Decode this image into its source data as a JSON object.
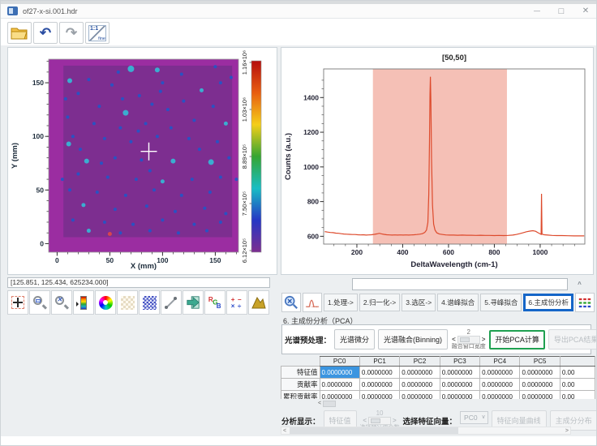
{
  "window": {
    "title": "of27-x-si.001.hdr"
  },
  "top_toolbar": {
    "icons": [
      {
        "name": "open-file-button",
        "type": "folder"
      },
      {
        "name": "undo-button",
        "type": "undo"
      },
      {
        "name": "redo-button",
        "type": "redo"
      },
      {
        "name": "zoom-1to1-button",
        "type": "one2one"
      }
    ]
  },
  "map_panel": {
    "status_readout": "[125.851, 125.434, 625234.000]",
    "toolbar_icons": [
      "crosshair",
      "zoom-window",
      "zoom-reset",
      "colormap",
      "color-wheel",
      "pattern-light",
      "pattern-blue",
      "measure",
      "import-arrow",
      "rgb-channels",
      "math-ops",
      "surface-3d"
    ]
  },
  "analysis": {
    "tabs": [
      "1.处理->",
      "2.归一化->",
      "3.选区->",
      "4.谱峰拟合",
      "5.寻峰拟合",
      "6.主成份分析"
    ],
    "active_tab_index": 5,
    "section_title": "6. 主成份分析（PCA）",
    "preprocess": {
      "label": "光谱预处理：",
      "derivative_btn": "光谱微分",
      "binning_btn": "光谱融合(Binning)",
      "bin_value": "2",
      "bin_caption": "融合窗口宽度",
      "start_btn": "开始PCA计算",
      "export_btn": "导出PCA结果"
    },
    "table": {
      "col_headers": [
        "PC0",
        "PC1",
        "PC2",
        "PC3",
        "PC4",
        "PC5",
        ""
      ],
      "rows": [
        {
          "label": "特征值",
          "values": [
            "0.0000000",
            "0.0000000",
            "0.0000000",
            "0.0000000",
            "0.0000000",
            "0.0000000",
            "0.00"
          ]
        },
        {
          "label": "贡献率",
          "values": [
            "0.0000000",
            "0.0000000",
            "0.0000000",
            "0.0000000",
            "0.0000000",
            "0.0000000",
            "0.00"
          ]
        },
        {
          "label": "累积贡献率",
          "values": [
            "0.0000000",
            "0.0000000",
            "0.0000000",
            "0.0000000",
            "0.0000000",
            "0.0000000",
            "0.00"
          ]
        }
      ],
      "selected_cell": [
        0,
        0
      ]
    },
    "display": {
      "label": "分析显示：",
      "eigen_btn": "特征值",
      "count_value": "10",
      "count_caption": "选择特征值个数",
      "vector_label": "选择特征向量：",
      "vector_value": "PC0",
      "curve_btn": "特征向量曲线",
      "dist_btn": "主成分分布"
    }
  },
  "chart_data": [
    {
      "type": "heatmap",
      "title": "",
      "xlabel": "X (mm)",
      "ylabel": "Y (mm)",
      "xlim": [
        -8,
        172
      ],
      "ylim": [
        -8,
        172
      ],
      "xticks": [
        0,
        50,
        100,
        150
      ],
      "yticks": [
        0,
        50,
        100,
        150
      ],
      "minor_step": 10,
      "field_color": "#9b2da1",
      "inner_color": "#7d2e90",
      "inner_extent": [
        6,
        6,
        166,
        166
      ],
      "crosshair": {
        "x": 87,
        "y": 86,
        "color": "#ffffff"
      },
      "colorbar": {
        "labels_top_to_bottom": [
          "1.16×10⁶",
          "1.03×10⁶",
          "8.89×10⁵",
          "7.50×10⁵",
          "6.12×10⁵"
        ],
        "stops": [
          "#b50d0d",
          "#e85e10",
          "#f4ce1a",
          "#35a532",
          "#18bdc4",
          "#2636c4",
          "#7d2e90"
        ]
      },
      "dot_colors": [
        "#2356c7",
        "#35b8d6",
        "#e04848"
      ],
      "dots": [
        [
          70,
          163,
          4,
          1
        ],
        [
          95,
          162,
          3,
          1
        ],
        [
          150,
          165,
          2,
          0
        ],
        [
          58,
          160,
          2,
          0
        ],
        [
          118,
          158,
          2,
          0
        ],
        [
          12,
          152,
          3,
          1
        ],
        [
          30,
          153,
          2,
          0
        ],
        [
          52,
          148,
          2,
          0
        ],
        [
          100,
          150,
          2,
          0
        ],
        [
          137,
          143,
          2.5,
          1
        ],
        [
          155,
          150,
          2,
          0
        ],
        [
          20,
          140,
          2,
          0
        ],
        [
          78,
          138,
          2,
          0
        ],
        [
          40,
          128,
          2,
          0
        ],
        [
          65,
          122,
          3.5,
          1
        ],
        [
          90,
          130,
          2,
          0
        ],
        [
          120,
          133,
          2,
          0
        ],
        [
          148,
          128,
          2,
          0
        ],
        [
          10,
          118,
          2,
          0
        ],
        [
          35,
          112,
          2,
          0
        ],
        [
          60,
          108,
          2,
          0
        ],
        [
          84,
          112,
          2,
          0
        ],
        [
          108,
          108,
          2,
          0
        ],
        [
          130,
          115,
          2,
          0
        ],
        [
          160,
          112,
          2.5,
          1
        ],
        [
          15,
          100,
          2,
          0
        ],
        [
          45,
          98,
          2,
          0
        ],
        [
          70,
          95,
          2,
          0
        ],
        [
          95,
          100,
          2,
          0
        ],
        [
          125,
          98,
          2,
          0
        ],
        [
          152,
          95,
          2,
          0
        ],
        [
          11,
          93,
          3,
          1
        ],
        [
          28,
          77,
          3,
          1
        ],
        [
          55,
          80,
          2,
          0
        ],
        [
          80,
          78,
          2,
          0
        ],
        [
          110,
          77,
          3,
          1
        ],
        [
          146,
          76,
          3.5,
          1
        ],
        [
          163,
          80,
          2,
          0
        ],
        [
          20,
          65,
          2,
          0
        ],
        [
          48,
          62,
          2,
          0
        ],
        [
          75,
          60,
          2,
          0
        ],
        [
          100,
          58,
          2.5,
          1
        ],
        [
          128,
          60,
          2,
          0
        ],
        [
          155,
          62,
          2,
          0
        ],
        [
          12,
          50,
          2,
          0
        ],
        [
          38,
          48,
          2,
          0
        ],
        [
          65,
          45,
          2,
          0
        ],
        [
          92,
          50,
          2,
          0
        ],
        [
          118,
          45,
          2,
          0
        ],
        [
          145,
          48,
          2,
          0
        ],
        [
          25,
          36,
          2.5,
          1
        ],
        [
          55,
          32,
          2,
          0
        ],
        [
          85,
          35,
          2,
          0
        ],
        [
          112,
          30,
          2,
          0
        ],
        [
          140,
          33,
          2,
          0
        ],
        [
          160,
          28,
          2,
          0
        ],
        [
          15,
          22,
          2,
          0
        ],
        [
          45,
          20,
          2,
          0
        ],
        [
          72,
          18,
          2,
          0
        ],
        [
          100,
          22,
          2,
          0
        ],
        [
          130,
          18,
          2,
          0
        ],
        [
          155,
          20,
          2,
          0
        ],
        [
          30,
          12,
          2.5,
          1
        ],
        [
          60,
          10,
          2,
          0
        ],
        [
          88,
          12,
          2,
          0
        ],
        [
          115,
          10,
          2,
          0
        ],
        [
          142,
          12,
          2,
          0
        ],
        [
          50,
          9,
          2.5,
          2
        ],
        [
          165,
          155,
          2,
          0
        ],
        [
          8,
          135,
          2,
          0
        ],
        [
          170,
          60,
          2,
          0
        ],
        [
          5,
          60,
          2,
          0
        ],
        [
          98,
          142,
          2,
          0
        ],
        [
          62,
          135,
          2,
          0
        ],
        [
          22,
          88,
          2,
          0
        ],
        [
          135,
          88,
          2,
          0
        ],
        [
          88,
          68,
          2,
          0
        ],
        [
          42,
          75,
          2,
          0
        ],
        [
          105,
          125,
          2,
          0
        ],
        [
          77,
          105,
          2,
          0
        ]
      ]
    },
    {
      "type": "line",
      "title": "[50,50]",
      "xlabel": "DeltaWavelength (cm-1)",
      "ylabel": "Counts (a.u.)",
      "xlim": [
        55,
        1195
      ],
      "ylim": [
        555,
        1565
      ],
      "xticks": [
        200,
        400,
        600,
        800,
        1000
      ],
      "yticks": [
        600,
        800,
        1000,
        1200,
        1400
      ],
      "minor_step_x": 50,
      "minor_step_y": 50,
      "line_color": "#dd4a2c",
      "region": {
        "x0": 270,
        "x1": 855,
        "color": "#e76a50",
        "opacity": 0.42
      },
      "points": [
        [
          60,
          627
        ],
        [
          72,
          624
        ],
        [
          84,
          622
        ],
        [
          96,
          621
        ],
        [
          108,
          618
        ],
        [
          120,
          617
        ],
        [
          132,
          615
        ],
        [
          144,
          613
        ],
        [
          156,
          612
        ],
        [
          168,
          611
        ],
        [
          180,
          610
        ],
        [
          192,
          610
        ],
        [
          204,
          609
        ],
        [
          216,
          608
        ],
        [
          228,
          609
        ],
        [
          240,
          607
        ],
        [
          252,
          608
        ],
        [
          264,
          609
        ],
        [
          276,
          611
        ],
        [
          288,
          614
        ],
        [
          298,
          617
        ],
        [
          308,
          614
        ],
        [
          318,
          611
        ],
        [
          330,
          609
        ],
        [
          342,
          608
        ],
        [
          354,
          607
        ],
        [
          366,
          608
        ],
        [
          378,
          607
        ],
        [
          390,
          608
        ],
        [
          402,
          607
        ],
        [
          414,
          608
        ],
        [
          426,
          607
        ],
        [
          438,
          608
        ],
        [
          450,
          609
        ],
        [
          462,
          610
        ],
        [
          474,
          612
        ],
        [
          486,
          615
        ],
        [
          496,
          622
        ],
        [
          504,
          636
        ],
        [
          510,
          680
        ],
        [
          514,
          840
        ],
        [
          517,
          1150
        ],
        [
          519,
          1420
        ],
        [
          521,
          1520
        ],
        [
          523,
          1380
        ],
        [
          526,
          1050
        ],
        [
          530,
          780
        ],
        [
          535,
          670
        ],
        [
          541,
          636
        ],
        [
          549,
          620
        ],
        [
          560,
          613
        ],
        [
          574,
          610
        ],
        [
          588,
          608
        ],
        [
          604,
          607
        ],
        [
          622,
          607
        ],
        [
          640,
          606
        ],
        [
          660,
          607
        ],
        [
          680,
          606
        ],
        [
          700,
          606
        ],
        [
          720,
          605
        ],
        [
          740,
          606
        ],
        [
          760,
          605
        ],
        [
          780,
          605
        ],
        [
          800,
          604
        ],
        [
          820,
          605
        ],
        [
          840,
          604
        ],
        [
          860,
          605
        ],
        [
          880,
          607
        ],
        [
          895,
          610
        ],
        [
          910,
          615
        ],
        [
          925,
          620
        ],
        [
          940,
          626
        ],
        [
          955,
          630
        ],
        [
          968,
          632
        ],
        [
          980,
          629
        ],
        [
          990,
          621
        ],
        [
          1000,
          614
        ],
        [
          1004,
          611
        ],
        [
          1006,
          845
        ],
        [
          1008,
          612
        ],
        [
          1018,
          609
        ],
        [
          1034,
          607
        ],
        [
          1052,
          605
        ],
        [
          1072,
          604
        ],
        [
          1095,
          604
        ],
        [
          1120,
          603
        ],
        [
          1148,
          602
        ],
        [
          1175,
          602
        ],
        [
          1192,
          602
        ]
      ]
    }
  ]
}
